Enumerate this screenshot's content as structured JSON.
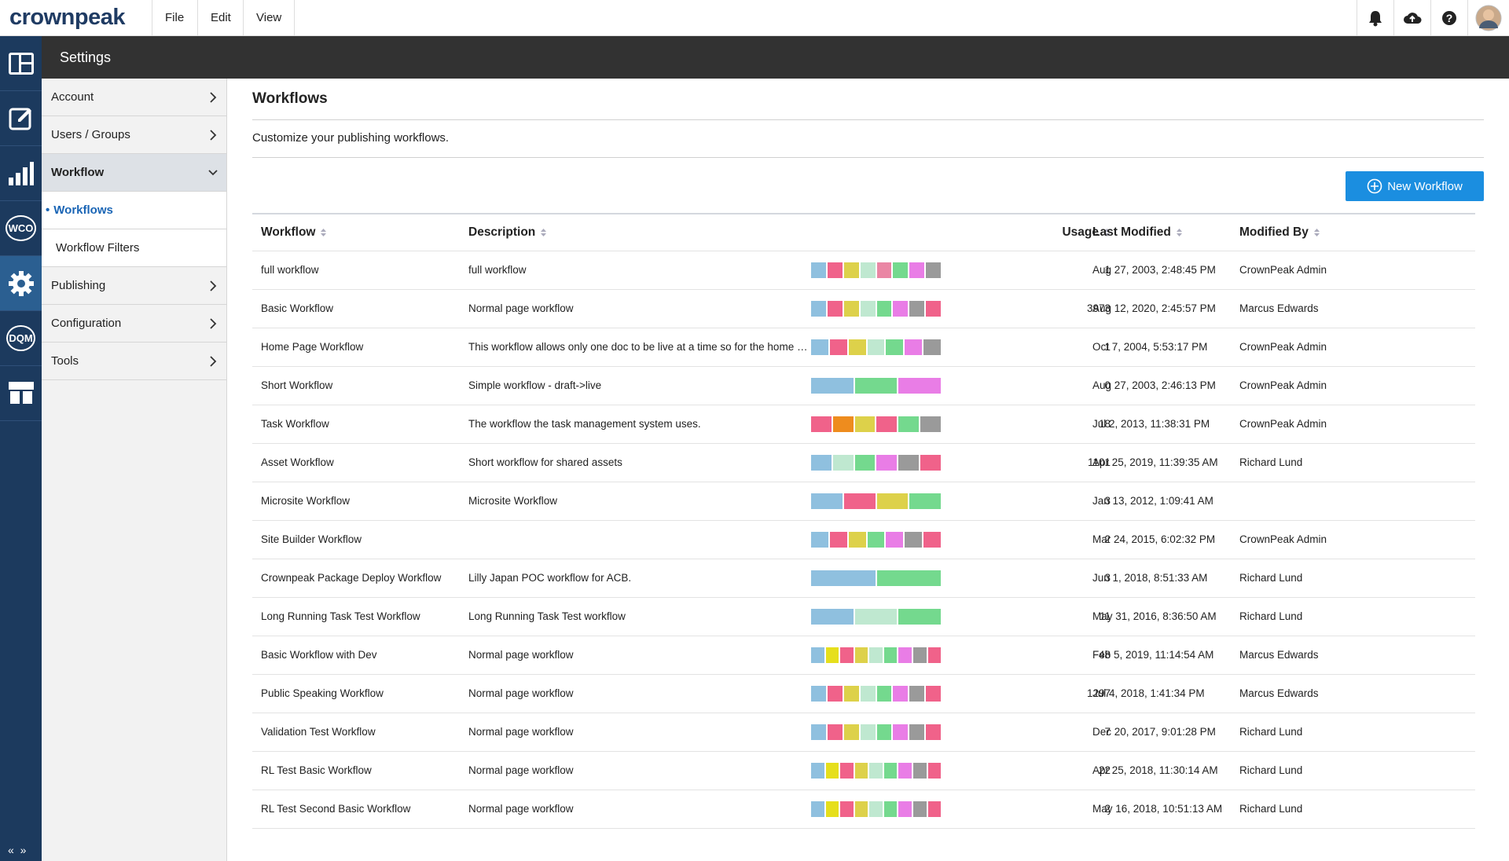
{
  "header": {
    "logo": "crownpeak",
    "menu": [
      "File",
      "Edit",
      "View"
    ]
  },
  "rail": {
    "labels": [
      "WCO",
      "DQM"
    ]
  },
  "settings_bar": {
    "title": "Settings"
  },
  "sidebar": {
    "items": [
      {
        "label": "Account"
      },
      {
        "label": "Users / Groups"
      },
      {
        "label": "Workflow",
        "children": [
          "Workflows",
          "Workflow Filters"
        ]
      },
      {
        "label": "Publishing"
      },
      {
        "label": "Configuration"
      },
      {
        "label": "Tools"
      }
    ]
  },
  "page": {
    "title": "Workflows",
    "subtitle": "Customize your publishing workflows.",
    "button": "New Workflow"
  },
  "table": {
    "columns": [
      "Workflow",
      "Description",
      "Usage",
      "Last Modified",
      "Modified By"
    ],
    "rows": [
      {
        "workflow": "full workflow",
        "description": "full workflow",
        "states": [
          "#8fc0df",
          "#f0628a",
          "#ddd14a",
          "#bfe8d0",
          "#ea86a4",
          "#74d98e",
          "#e97de6",
          "#9a9a9a"
        ],
        "usage": "1",
        "last_modified": "Aug 27, 2003, 2:48:45 PM",
        "modified_by": "CrownPeak Admin"
      },
      {
        "workflow": "Basic Workflow",
        "description": "Normal page workflow",
        "states": [
          "#8fc0df",
          "#f0628a",
          "#ddd14a",
          "#bfe8d0",
          "#74d98e",
          "#e97de6",
          "#9a9a9a",
          "#f0628a"
        ],
        "usage": "3973",
        "last_modified": "Aug 12, 2020, 2:45:57 PM",
        "modified_by": "Marcus Edwards"
      },
      {
        "workflow": "Home Page Workflow",
        "description": "This workflow allows only one doc to be live at a time so for the home …",
        "states": [
          "#8fc0df",
          "#f0628a",
          "#ddd14a",
          "#bfe8d0",
          "#74d98e",
          "#e97de6",
          "#9a9a9a"
        ],
        "usage": "1",
        "last_modified": "Oct 7, 2004, 5:53:17 PM",
        "modified_by": "CrownPeak Admin"
      },
      {
        "workflow": "Short Workflow",
        "description": "Simple workflow - draft->live",
        "states": [
          "#8fc0df",
          "#74d98e",
          "#e97de6"
        ],
        "usage": "0",
        "last_modified": "Aug 27, 2003, 2:46:13 PM",
        "modified_by": "CrownPeak Admin"
      },
      {
        "workflow": "Task Workflow",
        "description": "The workflow the task management system uses.",
        "states": [
          "#f0628a",
          "#ee8c1e",
          "#ddd14a",
          "#f0628a",
          "#74d98e",
          "#9a9a9a"
        ],
        "usage": "18",
        "last_modified": "Jul 2, 2013, 11:38:31 PM",
        "modified_by": "CrownPeak Admin"
      },
      {
        "workflow": "Asset Workflow",
        "description": "Short workflow for shared assets",
        "states": [
          "#8fc0df",
          "#bfe8d0",
          "#74d98e",
          "#e97de6",
          "#9a9a9a",
          "#f0628a"
        ],
        "usage": "1101",
        "last_modified": "Apr 25, 2019, 11:39:35 AM",
        "modified_by": "Richard Lund"
      },
      {
        "workflow": "Microsite Workflow",
        "description": "Microsite Workflow",
        "states": [
          "#8fc0df",
          "#f0628a",
          "#ddd14a",
          "#74d98e"
        ],
        "usage": "3",
        "last_modified": "Jan 13, 2012, 1:09:41 AM"
      },
      {
        "workflow": "Site Builder Workflow",
        "states": [
          "#8fc0df",
          "#f0628a",
          "#ddd14a",
          "#74d98e",
          "#e97de6",
          "#9a9a9a",
          "#f0628a"
        ],
        "usage": "2",
        "last_modified": "Mar 24, 2015, 6:02:32 PM",
        "modified_by": "CrownPeak Admin"
      },
      {
        "workflow": "Crownpeak Package Deploy Workflow",
        "description": "Lilly Japan POC workflow for ACB.",
        "states": [
          "#8fc0df",
          "#74d98e"
        ],
        "usage": "3",
        "last_modified": "Jun 1, 2018, 8:51:33 AM",
        "modified_by": "Richard Lund"
      },
      {
        "workflow": "Long Running Task Test Workflow",
        "description": "Long Running Task Test workflow",
        "states": [
          "#8fc0df",
          "#bfe8d0",
          "#74d98e"
        ],
        "usage": "11",
        "last_modified": "May 31, 2016, 8:36:50 AM",
        "modified_by": "Richard Lund"
      },
      {
        "workflow": "Basic Workflow with Dev",
        "description": "Normal page workflow",
        "states": [
          "#8fc0df",
          "#e6df1c",
          "#f0628a",
          "#ddd14a",
          "#bfe8d0",
          "#74d98e",
          "#e97de6",
          "#9a9a9a",
          "#f0628a"
        ],
        "usage": "48",
        "last_modified": "Feb 5, 2019, 11:14:54 AM",
        "modified_by": "Marcus Edwards"
      },
      {
        "workflow": "Public Speaking Workflow",
        "description": "Normal page workflow",
        "states": [
          "#8fc0df",
          "#f0628a",
          "#ddd14a",
          "#bfe8d0",
          "#74d98e",
          "#e97de6",
          "#9a9a9a",
          "#f0628a"
        ],
        "usage": "1297",
        "last_modified": "Jul 4, 2018, 1:41:34 PM",
        "modified_by": "Marcus Edwards"
      },
      {
        "workflow": "Validation Test Workflow",
        "description": "Normal page workflow",
        "states": [
          "#8fc0df",
          "#f0628a",
          "#ddd14a",
          "#bfe8d0",
          "#74d98e",
          "#e97de6",
          "#9a9a9a",
          "#f0628a"
        ],
        "usage": "7",
        "last_modified": "Dec 20, 2017, 9:01:28 PM",
        "modified_by": "Richard Lund"
      },
      {
        "workflow": "RL Test Basic Workflow",
        "description": "Normal page workflow",
        "states": [
          "#8fc0df",
          "#e6df1c",
          "#f0628a",
          "#ddd14a",
          "#bfe8d0",
          "#74d98e",
          "#e97de6",
          "#9a9a9a",
          "#f0628a"
        ],
        "usage": "22",
        "last_modified": "Apr 25, 2018, 11:30:14 AM",
        "modified_by": "Richard Lund"
      },
      {
        "workflow": "RL Test Second Basic Workflow",
        "description": "Normal page workflow",
        "states": [
          "#8fc0df",
          "#e6df1c",
          "#f0628a",
          "#ddd14a",
          "#bfe8d0",
          "#74d98e",
          "#e97de6",
          "#9a9a9a",
          "#f0628a"
        ],
        "usage": "2",
        "last_modified": "May 16, 2018, 10:51:13 AM",
        "modified_by": "Richard Lund"
      }
    ]
  }
}
